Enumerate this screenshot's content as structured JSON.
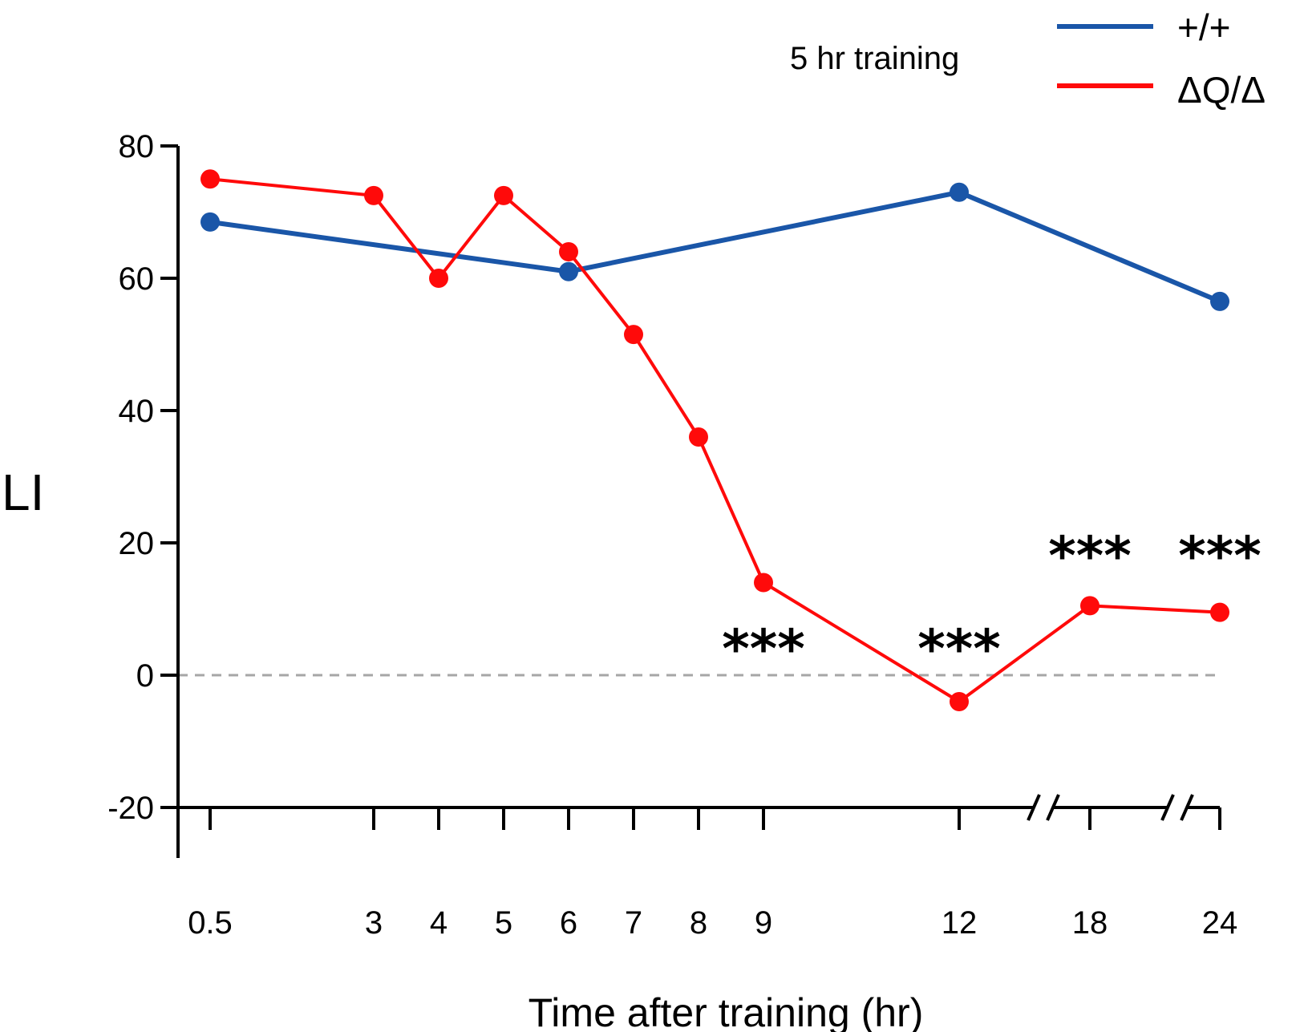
{
  "chart_data": {
    "type": "line",
    "title": "",
    "annotation": "5 hr training",
    "xlabel": "Time after training (hr)",
    "ylabel": "LI",
    "x_tick_labels": [
      "0.5",
      "3",
      "4",
      "5",
      "6",
      "7",
      "8",
      "9",
      "12",
      "18",
      "24"
    ],
    "ylim": [
      -20,
      80
    ],
    "y_ticks": [
      -20,
      0,
      20,
      40,
      60,
      80
    ],
    "y_tick_labels": [
      "-20",
      "0",
      "20",
      "40",
      "60",
      "80"
    ],
    "reference_line": 0,
    "legend": "top-right",
    "axis_breaks": [
      "12-18",
      "18-24"
    ],
    "series": [
      {
        "name": "+/+",
        "color": "#1a56a8",
        "x": [
          "0.5",
          "6",
          "12",
          "24"
        ],
        "y": [
          68.5,
          61,
          73,
          56.5
        ]
      },
      {
        "name": "ΔQ/Δ",
        "color": "#ff0a0a",
        "x": [
          "0.5",
          "3",
          "4",
          "5",
          "6",
          "7",
          "8",
          "9",
          "12",
          "18",
          "24"
        ],
        "y": [
          75,
          72.5,
          60,
          72.5,
          64,
          51.5,
          36,
          14,
          -4,
          10.5,
          9.5
        ]
      }
    ],
    "significance": [
      {
        "x": "9",
        "label": "***"
      },
      {
        "x": "12",
        "label": "***"
      },
      {
        "x": "18",
        "label": "***"
      },
      {
        "x": "24",
        "label": "***"
      }
    ]
  }
}
